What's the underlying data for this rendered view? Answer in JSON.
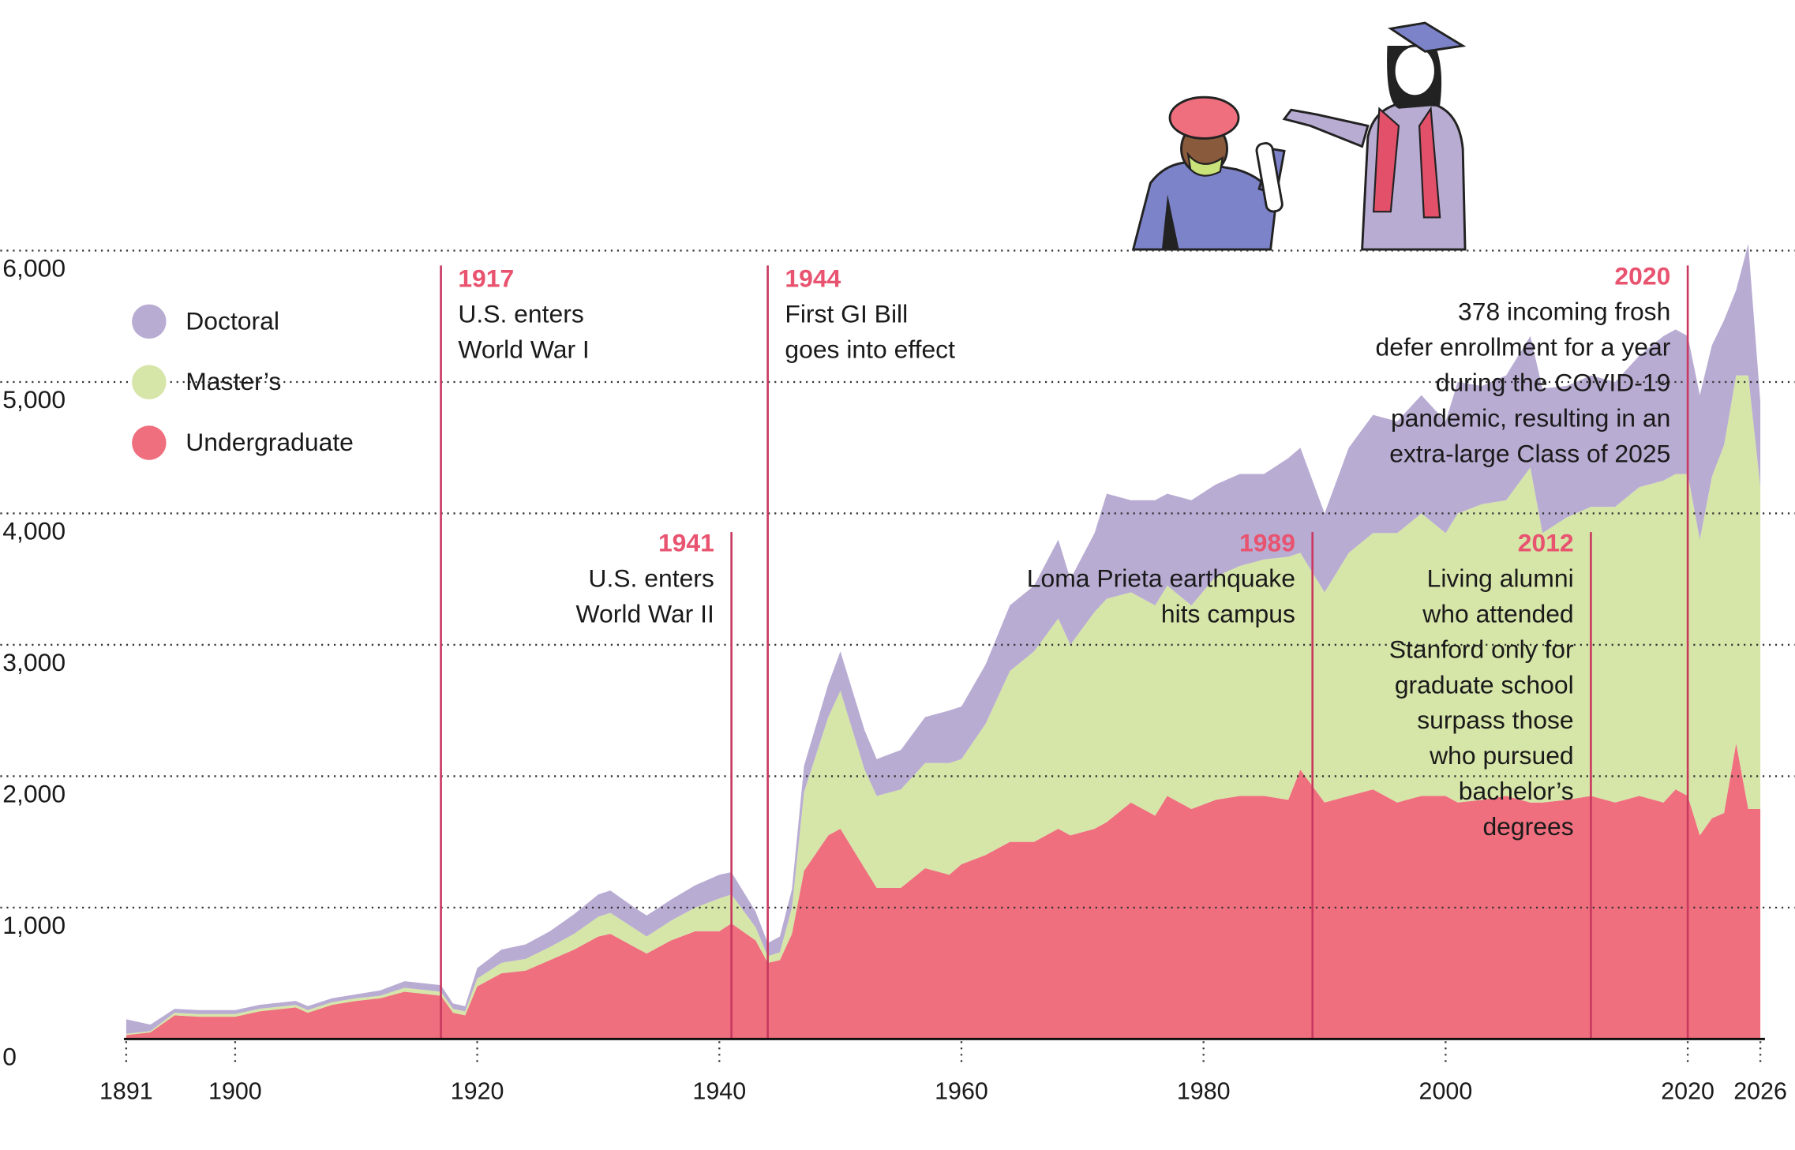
{
  "chart_data": {
    "type": "stacked-area",
    "x": [
      1891,
      1893,
      1895,
      1897,
      1900,
      1902,
      1905,
      1906,
      1908,
      1910,
      1912,
      1914,
      1916,
      1917,
      1918,
      1919,
      1920,
      1922,
      1924,
      1926,
      1928,
      1930,
      1931,
      1933,
      1934,
      1936,
      1938,
      1940,
      1941,
      1943,
      1944,
      1945,
      1946,
      1947,
      1949,
      1950,
      1952,
      1953,
      1955,
      1957,
      1959,
      1960,
      1962,
      1964,
      1966,
      1968,
      1969,
      1971,
      1972,
      1974,
      1976,
      1977,
      1979,
      1981,
      1983,
      1985,
      1987,
      1988,
      1990,
      1992,
      1994,
      1996,
      1998,
      2000,
      2001,
      2003,
      2005,
      2007,
      2008,
      2010,
      2012,
      2014,
      2016,
      2018,
      2019,
      2020,
      2021,
      2022,
      2023,
      2024,
      2025,
      2026
    ],
    "series": [
      {
        "name": "Undergraduate",
        "color": "#ef6f7e",
        "values": [
          30,
          50,
          180,
          170,
          170,
          210,
          240,
          200,
          260,
          290,
          310,
          360,
          340,
          330,
          200,
          180,
          400,
          500,
          520,
          600,
          680,
          780,
          800,
          700,
          650,
          750,
          820,
          820,
          880,
          750,
          580,
          600,
          800,
          1280,
          1550,
          1600,
          1300,
          1150,
          1150,
          1300,
          1250,
          1330,
          1400,
          1500,
          1500,
          1600,
          1550,
          1600,
          1650,
          1800,
          1700,
          1850,
          1750,
          1820,
          1850,
          1850,
          1820,
          2050,
          1800,
          1850,
          1900,
          1800,
          1850,
          1850,
          1800,
          1820,
          1850,
          1800,
          1800,
          1820,
          1850,
          1800,
          1850,
          1800,
          1900,
          1850,
          1550,
          1680,
          1720,
          2250,
          1750,
          1750
        ]
      },
      {
        "name": "Master’s",
        "color": "#d6e5a8",
        "values": [
          10,
          10,
          20,
          20,
          20,
          20,
          20,
          20,
          20,
          20,
          20,
          30,
          30,
          30,
          30,
          30,
          60,
          80,
          90,
          100,
          120,
          150,
          160,
          140,
          130,
          150,
          180,
          250,
          220,
          100,
          50,
          60,
          200,
          600,
          900,
          1050,
          750,
          700,
          750,
          800,
          850,
          800,
          1000,
          1300,
          1450,
          1600,
          1450,
          1650,
          1700,
          1600,
          1600,
          1600,
          1550,
          1700,
          1750,
          1800,
          1850,
          1650,
          1600,
          1850,
          1950,
          2050,
          2150,
          2000,
          2200,
          2250,
          2250,
          2550,
          2050,
          2150,
          2200,
          2250,
          2350,
          2450,
          2400,
          2450,
          2250,
          2600,
          2800,
          2800,
          3300,
          2450
        ]
      },
      {
        "name": "Doctoral",
        "color": "#b9acd3",
        "values": [
          110,
          50,
          30,
          30,
          30,
          30,
          30,
          30,
          30,
          30,
          40,
          50,
          50,
          50,
          40,
          40,
          80,
          100,
          110,
          120,
          150,
          170,
          170,
          160,
          160,
          160,
          170,
          180,
          170,
          120,
          100,
          120,
          140,
          200,
          250,
          300,
          300,
          280,
          300,
          350,
          400,
          400,
          450,
          500,
          500,
          600,
          500,
          600,
          800,
          700,
          800,
          700,
          800,
          700,
          700,
          650,
          750,
          800,
          600,
          800,
          900,
          850,
          900,
          850,
          1000,
          900,
          950,
          1000,
          1100,
          1000,
          1000,
          950,
          1000,
          1100,
          1100,
          1050,
          1100,
          1000,
          950,
          650,
          1000,
          650
        ]
      }
    ],
    "xlim": [
      1891,
      2026
    ],
    "xticks": [
      1891,
      1900,
      1920,
      1940,
      1960,
      1980,
      2000,
      2020,
      2026
    ],
    "ylim": [
      0,
      6000
    ],
    "yticks": [
      0,
      {
        "value": 1000,
        "label": "1,000"
      },
      {
        "value": 2000,
        "label": "2,000"
      },
      {
        "value": 3000,
        "label": "3,000"
      },
      {
        "value": 4000,
        "label": "4,000"
      },
      {
        "value": 5000,
        "label": "5,000"
      },
      {
        "value": 6000,
        "label": "6,000"
      }
    ],
    "grid": true,
    "annotations": [
      {
        "year": 1917,
        "text": [
          "U.S. enters",
          "World War I"
        ]
      },
      {
        "year": 1941,
        "text": [
          "U.S. enters",
          "World War II"
        ]
      },
      {
        "year": 1944,
        "text": [
          "First GI Bill",
          "goes into effect"
        ]
      },
      {
        "year": 1989,
        "text": [
          "Loma Prieta earthquake",
          "hits campus"
        ]
      },
      {
        "year": 2012,
        "text": [
          "Living alumni",
          "who attended",
          "Stanford only for",
          "graduate school",
          "surpass those",
          "who pursued",
          "bachelor’s",
          "degrees"
        ]
      },
      {
        "year": 2020,
        "text": [
          "378 incoming frosh",
          "defer enrollment for a year",
          "during the COVID-19",
          "pandemic, resulting in an",
          "extra-large Class of 2025"
        ]
      }
    ]
  }
}
